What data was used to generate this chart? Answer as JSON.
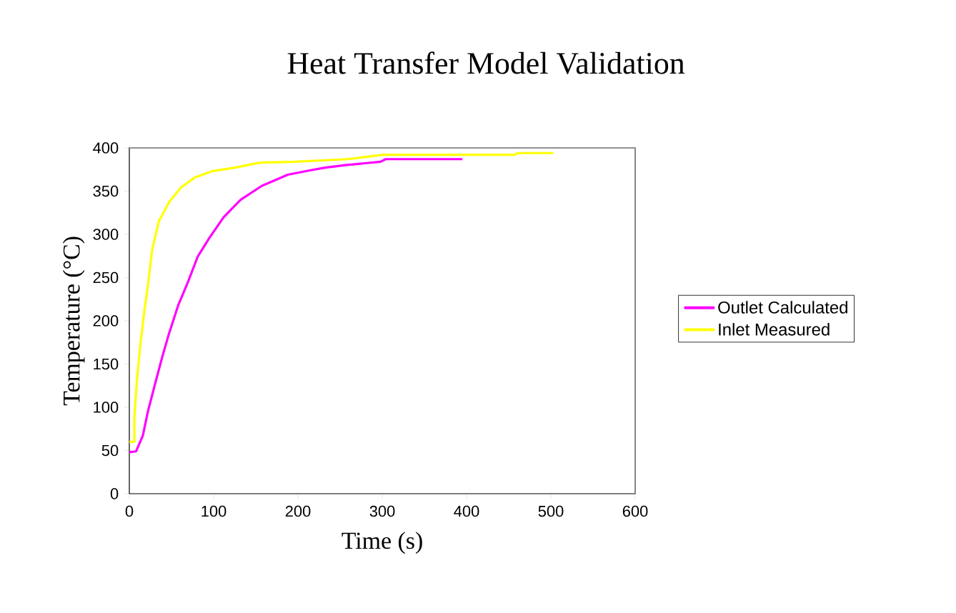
{
  "chart_data": {
    "type": "line",
    "title": "Heat Transfer Model Validation",
    "xlabel": "Time (s)",
    "ylabel": "Temperature (°C)",
    "xlim": [
      0,
      600
    ],
    "xticks": [
      0,
      100,
      200,
      300,
      400,
      500,
      600
    ],
    "ylim": [
      0,
      400
    ],
    "yticks": [
      0,
      50,
      100,
      150,
      200,
      250,
      300,
      350,
      400
    ],
    "grid": false,
    "legend": "right",
    "marker": "none",
    "line_style": "solid",
    "series": [
      {
        "name": "Outlet Calculated",
        "color": "#ff00ff",
        "x": [
          0,
          8,
          16,
          22,
          30,
          39,
          47,
          58,
          70,
          81,
          95,
          112,
          132,
          157,
          188,
          214,
          231,
          256,
          298,
          304,
          395
        ],
        "values": [
          48,
          49,
          67,
          95,
          125,
          158,
          185,
          218,
          246,
          274,
          296,
          320,
          340,
          356,
          369,
          374,
          377,
          380,
          384,
          387,
          387
        ]
      },
      {
        "name": "Inlet Measured",
        "color": "#ffff00",
        "x": [
          0,
          6,
          6,
          9,
          13,
          18,
          22,
          27,
          35,
          47,
          61,
          78,
          98,
          124,
          155,
          197,
          259,
          301,
          457,
          461,
          503
        ],
        "values": [
          60,
          60,
          89,
          131,
          172,
          213,
          240,
          282,
          315,
          337,
          354,
          366,
          373,
          377,
          383,
          384,
          387,
          392,
          392,
          394,
          394
        ]
      }
    ]
  }
}
